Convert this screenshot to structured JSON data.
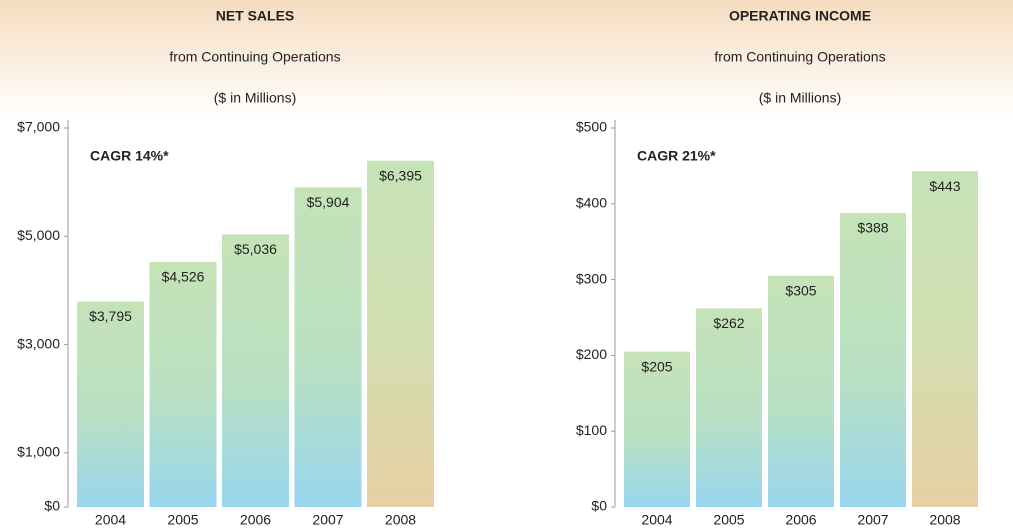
{
  "chart_data": [
    {
      "type": "bar",
      "title": "NET SALES",
      "subtitle": "from Continuing Operations",
      "units": "($ in Millions)",
      "annotation": "CAGR 14%*",
      "categories": [
        "2004",
        "2005",
        "2006",
        "2007",
        "2008"
      ],
      "values": [
        3795,
        4526,
        5036,
        5904,
        6395
      ],
      "value_labels": [
        "$3,795",
        "$4,526",
        "$5,036",
        "$5,904",
        "$6,395"
      ],
      "ylim": [
        0,
        7000
      ],
      "yticks": [
        {
          "value": 0,
          "label": "$0"
        },
        {
          "value": 1000,
          "label": "$1,000"
        },
        {
          "value": 3000,
          "label": "$3,000"
        },
        {
          "value": 5000,
          "label": "$5,000"
        },
        {
          "value": 7000,
          "label": "$7,000"
        }
      ]
    },
    {
      "type": "bar",
      "title": "OPERATING INCOME",
      "subtitle": "from Continuing Operations",
      "units": "($ in Millions)",
      "annotation": "CAGR 21%*",
      "categories": [
        "2004",
        "2005",
        "2006",
        "2007",
        "2008"
      ],
      "values": [
        205,
        262,
        305,
        388,
        443
      ],
      "value_labels": [
        "$205",
        "$262",
        "$305",
        "$388",
        "$443"
      ],
      "ylim": [
        0,
        500
      ],
      "yticks": [
        {
          "value": 0,
          "label": "$0"
        },
        {
          "value": 100,
          "label": "$100"
        },
        {
          "value": 200,
          "label": "$200"
        },
        {
          "value": 300,
          "label": "$300"
        },
        {
          "value": 400,
          "label": "$400"
        },
        {
          "value": 500,
          "label": "$500"
        }
      ]
    }
  ]
}
